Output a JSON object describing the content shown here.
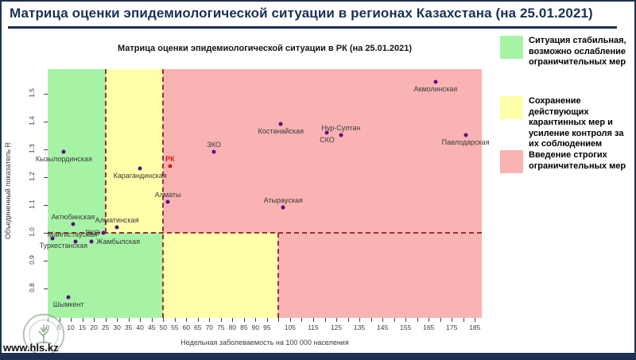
{
  "header": {
    "title": "Матрица оценки эпидемиологической ситуации в регионах Казахстана (на 25.01.2021)"
  },
  "footer": {
    "site": "www.hls.kz"
  },
  "legend": {
    "position": "right",
    "items": [
      {
        "color": "#a6f3a6",
        "label": "Ситуация стабильная, возможно ослабление ограничительных мер"
      },
      {
        "color": "#ffffaa",
        "label": "Сохранение действующих карантинных мер и усиление контроля за их соблюдением"
      },
      {
        "color": "#f9b3b3",
        "label": "Введение строгих ограничительных мер"
      }
    ]
  },
  "chart_data": {
    "type": "scatter",
    "title": "Матрица оценки эпидемиологической ситуации в РК (на 25.01.2021)",
    "xlabel": "Недельная заболеваемость на 100 000 населения",
    "ylabel": "Объединенный показатель R",
    "xlim": [
      0,
      188
    ],
    "ylim": [
      0.695,
      1.587
    ],
    "grid": false,
    "x_ticks_step": 5,
    "x_ticks_max": 185,
    "x_tick_labels": [
      0,
      5,
      10,
      15,
      20,
      25,
      30,
      35,
      40,
      45,
      50,
      55,
      60,
      65,
      70,
      75,
      80,
      85,
      90,
      95,
      105,
      115,
      125,
      135,
      145,
      155,
      165,
      175,
      185
    ],
    "y_ticks": [
      0.8,
      0.9,
      1.0,
      1.1,
      1.2,
      1.3,
      1.4,
      1.5
    ],
    "thresholds": {
      "y_line": 1.0,
      "x_low": 25,
      "x_mid": 50,
      "x_high": 100
    },
    "zone_colors": {
      "green": "#a6f3a6",
      "yellow": "#ffffaa",
      "pink": "#f9b3b3"
    },
    "dash_color": "#993333",
    "point_color": "#5e0b8b",
    "highlight_color": "#e01717",
    "points": [
      {
        "name": "Кызылординская",
        "x": 7,
        "y": 1.29,
        "label_pos": "below"
      },
      {
        "name": "Актюбинская",
        "x": 11,
        "y": 1.03,
        "label_pos": "above"
      },
      {
        "name": "Алматинская",
        "x": 30,
        "y": 1.02,
        "label_pos": "above"
      },
      {
        "name": "ВКО",
        "x": 24,
        "y": 1.0,
        "label_pos": "left"
      },
      {
        "name": "Мангистауская",
        "x": 12,
        "y": 0.97,
        "label_pos": "above",
        "dx": -4
      },
      {
        "name": "Туркестанская",
        "x": 2,
        "y": 0.98,
        "label_pos": "below",
        "dx": 14
      },
      {
        "name": "Жамбылская",
        "x": 19,
        "y": 0.97,
        "label_pos": "right"
      },
      {
        "name": "Шымкент",
        "x": 9,
        "y": 0.77,
        "label_pos": "below"
      },
      {
        "name": "Карагандинская",
        "x": 40,
        "y": 1.23,
        "label_pos": "below"
      },
      {
        "name": "РК",
        "x": 53,
        "y": 1.24,
        "label_pos": "above",
        "highlight": true
      },
      {
        "name": "Алматы",
        "x": 52,
        "y": 1.11,
        "label_pos": "above"
      },
      {
        "name": "ЗКО",
        "x": 72,
        "y": 1.29,
        "label_pos": "above"
      },
      {
        "name": "Атырауская",
        "x": 102,
        "y": 1.09,
        "label_pos": "above"
      },
      {
        "name": "Костанайская",
        "x": 101,
        "y": 1.39,
        "label_pos": "below"
      },
      {
        "name": "СКО",
        "x": 121,
        "y": 1.36,
        "label_pos": "below"
      },
      {
        "name": "Нур-Султан",
        "x": 127,
        "y": 1.35,
        "label_pos": "above"
      },
      {
        "name": "Акмолинская",
        "x": 168,
        "y": 1.54,
        "label_pos": "below"
      },
      {
        "name": "Павлодарская",
        "x": 181,
        "y": 1.35,
        "label_pos": "below"
      }
    ]
  }
}
